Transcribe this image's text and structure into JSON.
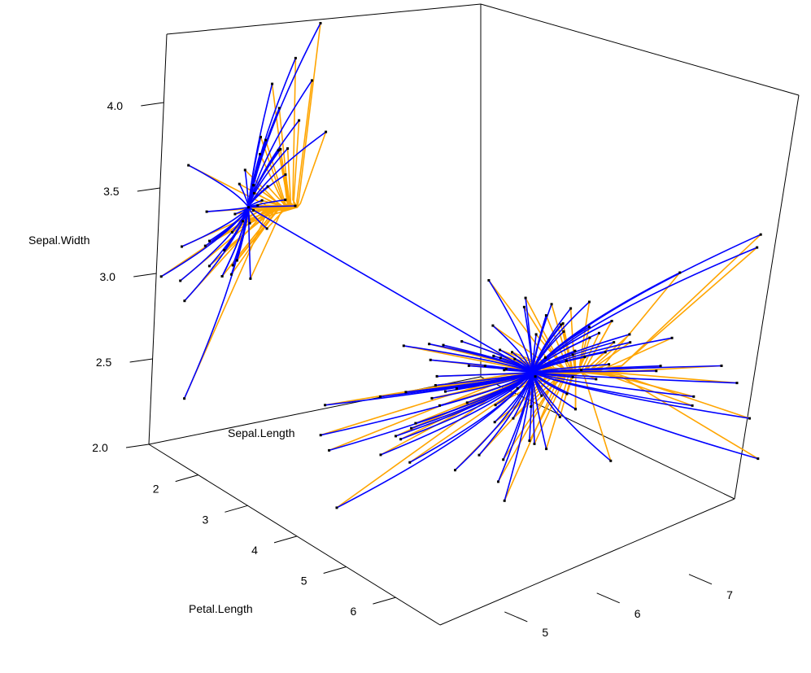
{
  "chart_data": {
    "type": "scatter",
    "subtype": "3d-scatter-with-cluster-center-links",
    "title": "",
    "axes": {
      "x": {
        "label": "Sepal.Length",
        "ticks": [
          "5",
          "6",
          "7"
        ],
        "range": [
          4.3,
          7.9
        ]
      },
      "y": {
        "label": "Petal.Length",
        "ticks": [
          "2",
          "3",
          "4",
          "5",
          "6"
        ],
        "range": [
          1.0,
          6.9
        ]
      },
      "z": {
        "label": "Sepal.Width",
        "ticks": [
          "2.0",
          "2.5",
          "3.0",
          "3.5",
          "4.0"
        ],
        "range": [
          2.0,
          4.4
        ]
      }
    },
    "legend": "none",
    "grid": false,
    "colors": {
      "curved_links": "#0000ff",
      "angled_links": "#ffa500",
      "points": "#000000"
    },
    "series": [
      {
        "center": {
          "sepal_length": 5.0,
          "petal_length": 1.5,
          "sepal_width": 3.4
        },
        "points": [
          [
            5.1,
            1.4,
            3.5
          ],
          [
            4.9,
            1.4,
            3.0
          ],
          [
            4.7,
            1.3,
            3.2
          ],
          [
            4.6,
            1.5,
            3.1
          ],
          [
            5.0,
            1.4,
            3.6
          ],
          [
            5.4,
            1.7,
            3.9
          ],
          [
            4.6,
            1.4,
            3.4
          ],
          [
            5.0,
            1.5,
            3.4
          ],
          [
            4.4,
            1.4,
            2.9
          ],
          [
            4.9,
            1.5,
            3.1
          ],
          [
            5.4,
            1.5,
            3.7
          ],
          [
            4.8,
            1.6,
            3.4
          ],
          [
            4.8,
            1.4,
            3.0
          ],
          [
            4.3,
            1.1,
            3.0
          ],
          [
            5.8,
            1.2,
            4.0
          ],
          [
            5.7,
            1.5,
            4.4
          ],
          [
            5.4,
            1.3,
            3.9
          ],
          [
            5.1,
            1.4,
            3.5
          ],
          [
            5.7,
            1.7,
            3.8
          ],
          [
            5.1,
            1.5,
            3.8
          ],
          [
            5.4,
            1.7,
            3.4
          ],
          [
            5.1,
            1.5,
            3.7
          ],
          [
            4.6,
            1.0,
            3.6
          ],
          [
            5.1,
            1.7,
            3.3
          ],
          [
            4.8,
            1.9,
            3.4
          ],
          [
            5.0,
            1.6,
            3.0
          ],
          [
            5.0,
            1.6,
            3.4
          ],
          [
            5.2,
            1.5,
            3.5
          ],
          [
            5.2,
            1.4,
            3.4
          ],
          [
            4.7,
            1.6,
            3.2
          ],
          [
            4.8,
            1.6,
            3.1
          ],
          [
            5.4,
            1.5,
            3.4
          ],
          [
            5.2,
            1.5,
            4.1
          ],
          [
            5.5,
            1.4,
            4.2
          ],
          [
            4.9,
            1.5,
            3.1
          ],
          [
            5.0,
            1.2,
            3.2
          ],
          [
            5.5,
            1.3,
            3.5
          ],
          [
            4.4,
            1.3,
            3.0
          ],
          [
            5.1,
            1.5,
            3.4
          ],
          [
            5.0,
            1.3,
            3.5
          ],
          [
            4.5,
            1.3,
            2.3
          ],
          [
            4.4,
            1.3,
            3.2
          ],
          [
            5.0,
            1.6,
            3.5
          ],
          [
            5.1,
            1.9,
            3.8
          ],
          [
            4.8,
            1.4,
            3.0
          ],
          [
            5.1,
            1.6,
            3.8
          ],
          [
            4.6,
            1.4,
            3.2
          ],
          [
            5.3,
            1.5,
            3.7
          ],
          [
            5.0,
            1.4,
            3.3
          ]
        ]
      },
      {
        "center": {
          "sepal_length": 6.3,
          "petal_length": 4.9,
          "sepal_width": 2.9
        },
        "points": [
          [
            7.0,
            4.7,
            3.2
          ],
          [
            6.4,
            4.5,
            3.2
          ],
          [
            6.9,
            4.9,
            3.1
          ],
          [
            5.5,
            4.0,
            2.3
          ],
          [
            6.5,
            4.6,
            2.8
          ],
          [
            5.7,
            4.5,
            2.8
          ],
          [
            6.3,
            4.7,
            3.3
          ],
          [
            4.9,
            3.3,
            2.4
          ],
          [
            6.6,
            4.6,
            2.9
          ],
          [
            5.2,
            3.9,
            2.7
          ],
          [
            5.0,
            3.5,
            2.0
          ],
          [
            5.9,
            4.2,
            3.0
          ],
          [
            6.0,
            4.0,
            2.2
          ],
          [
            6.1,
            4.7,
            2.9
          ],
          [
            5.6,
            3.6,
            2.9
          ],
          [
            6.7,
            4.4,
            3.1
          ],
          [
            5.8,
            4.1,
            2.7
          ],
          [
            6.2,
            4.5,
            2.2
          ],
          [
            5.6,
            3.9,
            2.5
          ],
          [
            5.9,
            4.8,
            3.2
          ],
          [
            6.1,
            4.0,
            2.8
          ],
          [
            6.3,
            4.9,
            2.5
          ],
          [
            6.4,
            4.3,
            2.9
          ],
          [
            6.6,
            4.4,
            3.0
          ],
          [
            6.8,
            4.8,
            2.8
          ],
          [
            6.7,
            5.0,
            3.0
          ],
          [
            6.0,
            4.5,
            2.9
          ],
          [
            5.7,
            3.5,
            2.6
          ],
          [
            5.5,
            3.8,
            2.4
          ],
          [
            5.5,
            3.7,
            2.4
          ],
          [
            5.8,
            3.9,
            2.7
          ],
          [
            6.0,
            5.1,
            2.7
          ],
          [
            5.4,
            4.5,
            3.0
          ],
          [
            6.0,
            4.5,
            3.4
          ],
          [
            6.7,
            4.7,
            3.1
          ],
          [
            6.3,
            4.4,
            2.3
          ],
          [
            5.6,
            4.1,
            3.0
          ],
          [
            5.5,
            4.0,
            2.5
          ],
          [
            6.1,
            4.6,
            3.0
          ],
          [
            5.8,
            4.0,
            2.6
          ],
          [
            5.0,
            3.3,
            2.3
          ],
          [
            5.6,
            4.2,
            2.7
          ],
          [
            5.7,
            4.2,
            3.0
          ],
          [
            6.2,
            4.3,
            2.9
          ],
          [
            5.1,
            3.0,
            2.5
          ],
          [
            5.7,
            4.1,
            2.8
          ],
          [
            6.3,
            6.0,
            3.3
          ],
          [
            5.8,
            5.1,
            2.7
          ],
          [
            7.1,
            5.9,
            3.0
          ],
          [
            6.3,
            5.6,
            2.9
          ],
          [
            6.5,
            5.8,
            3.0
          ],
          [
            7.6,
            6.6,
            3.0
          ],
          [
            4.9,
            4.5,
            2.5
          ],
          [
            7.3,
            6.3,
            2.9
          ],
          [
            6.7,
            5.8,
            2.5
          ],
          [
            7.2,
            6.1,
            3.6
          ],
          [
            6.5,
            5.1,
            3.2
          ],
          [
            6.4,
            5.3,
            2.7
          ],
          [
            6.8,
            5.5,
            3.0
          ],
          [
            5.7,
            5.0,
            2.5
          ],
          [
            5.8,
            5.1,
            2.8
          ],
          [
            6.4,
            5.3,
            3.2
          ],
          [
            6.5,
            5.5,
            3.0
          ],
          [
            7.7,
            6.7,
            3.8
          ],
          [
            7.7,
            6.9,
            2.6
          ],
          [
            6.0,
            5.0,
            2.2
          ],
          [
            6.9,
            5.7,
            3.2
          ],
          [
            5.6,
            4.9,
            2.8
          ],
          [
            7.7,
            6.7,
            2.8
          ],
          [
            6.3,
            4.9,
            2.7
          ],
          [
            6.7,
            5.7,
            3.3
          ],
          [
            7.2,
            6.0,
            3.2
          ],
          [
            6.2,
            4.8,
            2.8
          ],
          [
            6.1,
            4.9,
            3.0
          ],
          [
            6.4,
            5.6,
            2.8
          ],
          [
            7.2,
            5.8,
            3.0
          ],
          [
            7.4,
            6.1,
            2.8
          ],
          [
            7.9,
            6.4,
            3.8
          ],
          [
            6.4,
            5.6,
            2.8
          ],
          [
            6.3,
            5.1,
            2.8
          ],
          [
            6.1,
            5.6,
            2.6
          ],
          [
            7.7,
            6.1,
            3.0
          ],
          [
            6.3,
            5.6,
            3.4
          ],
          [
            6.4,
            5.5,
            3.1
          ],
          [
            6.0,
            4.8,
            3.0
          ],
          [
            6.9,
            5.4,
            3.1
          ],
          [
            6.7,
            5.6,
            3.1
          ],
          [
            6.9,
            5.1,
            3.1
          ],
          [
            6.8,
            5.9,
            3.2
          ],
          [
            6.7,
            5.7,
            3.3
          ],
          [
            6.7,
            5.2,
            3.0
          ],
          [
            6.3,
            5.0,
            2.5
          ],
          [
            6.5,
            5.2,
            3.0
          ],
          [
            6.2,
            5.4,
            3.4
          ],
          [
            5.9,
            5.1,
            3.0
          ]
        ]
      }
    ]
  }
}
